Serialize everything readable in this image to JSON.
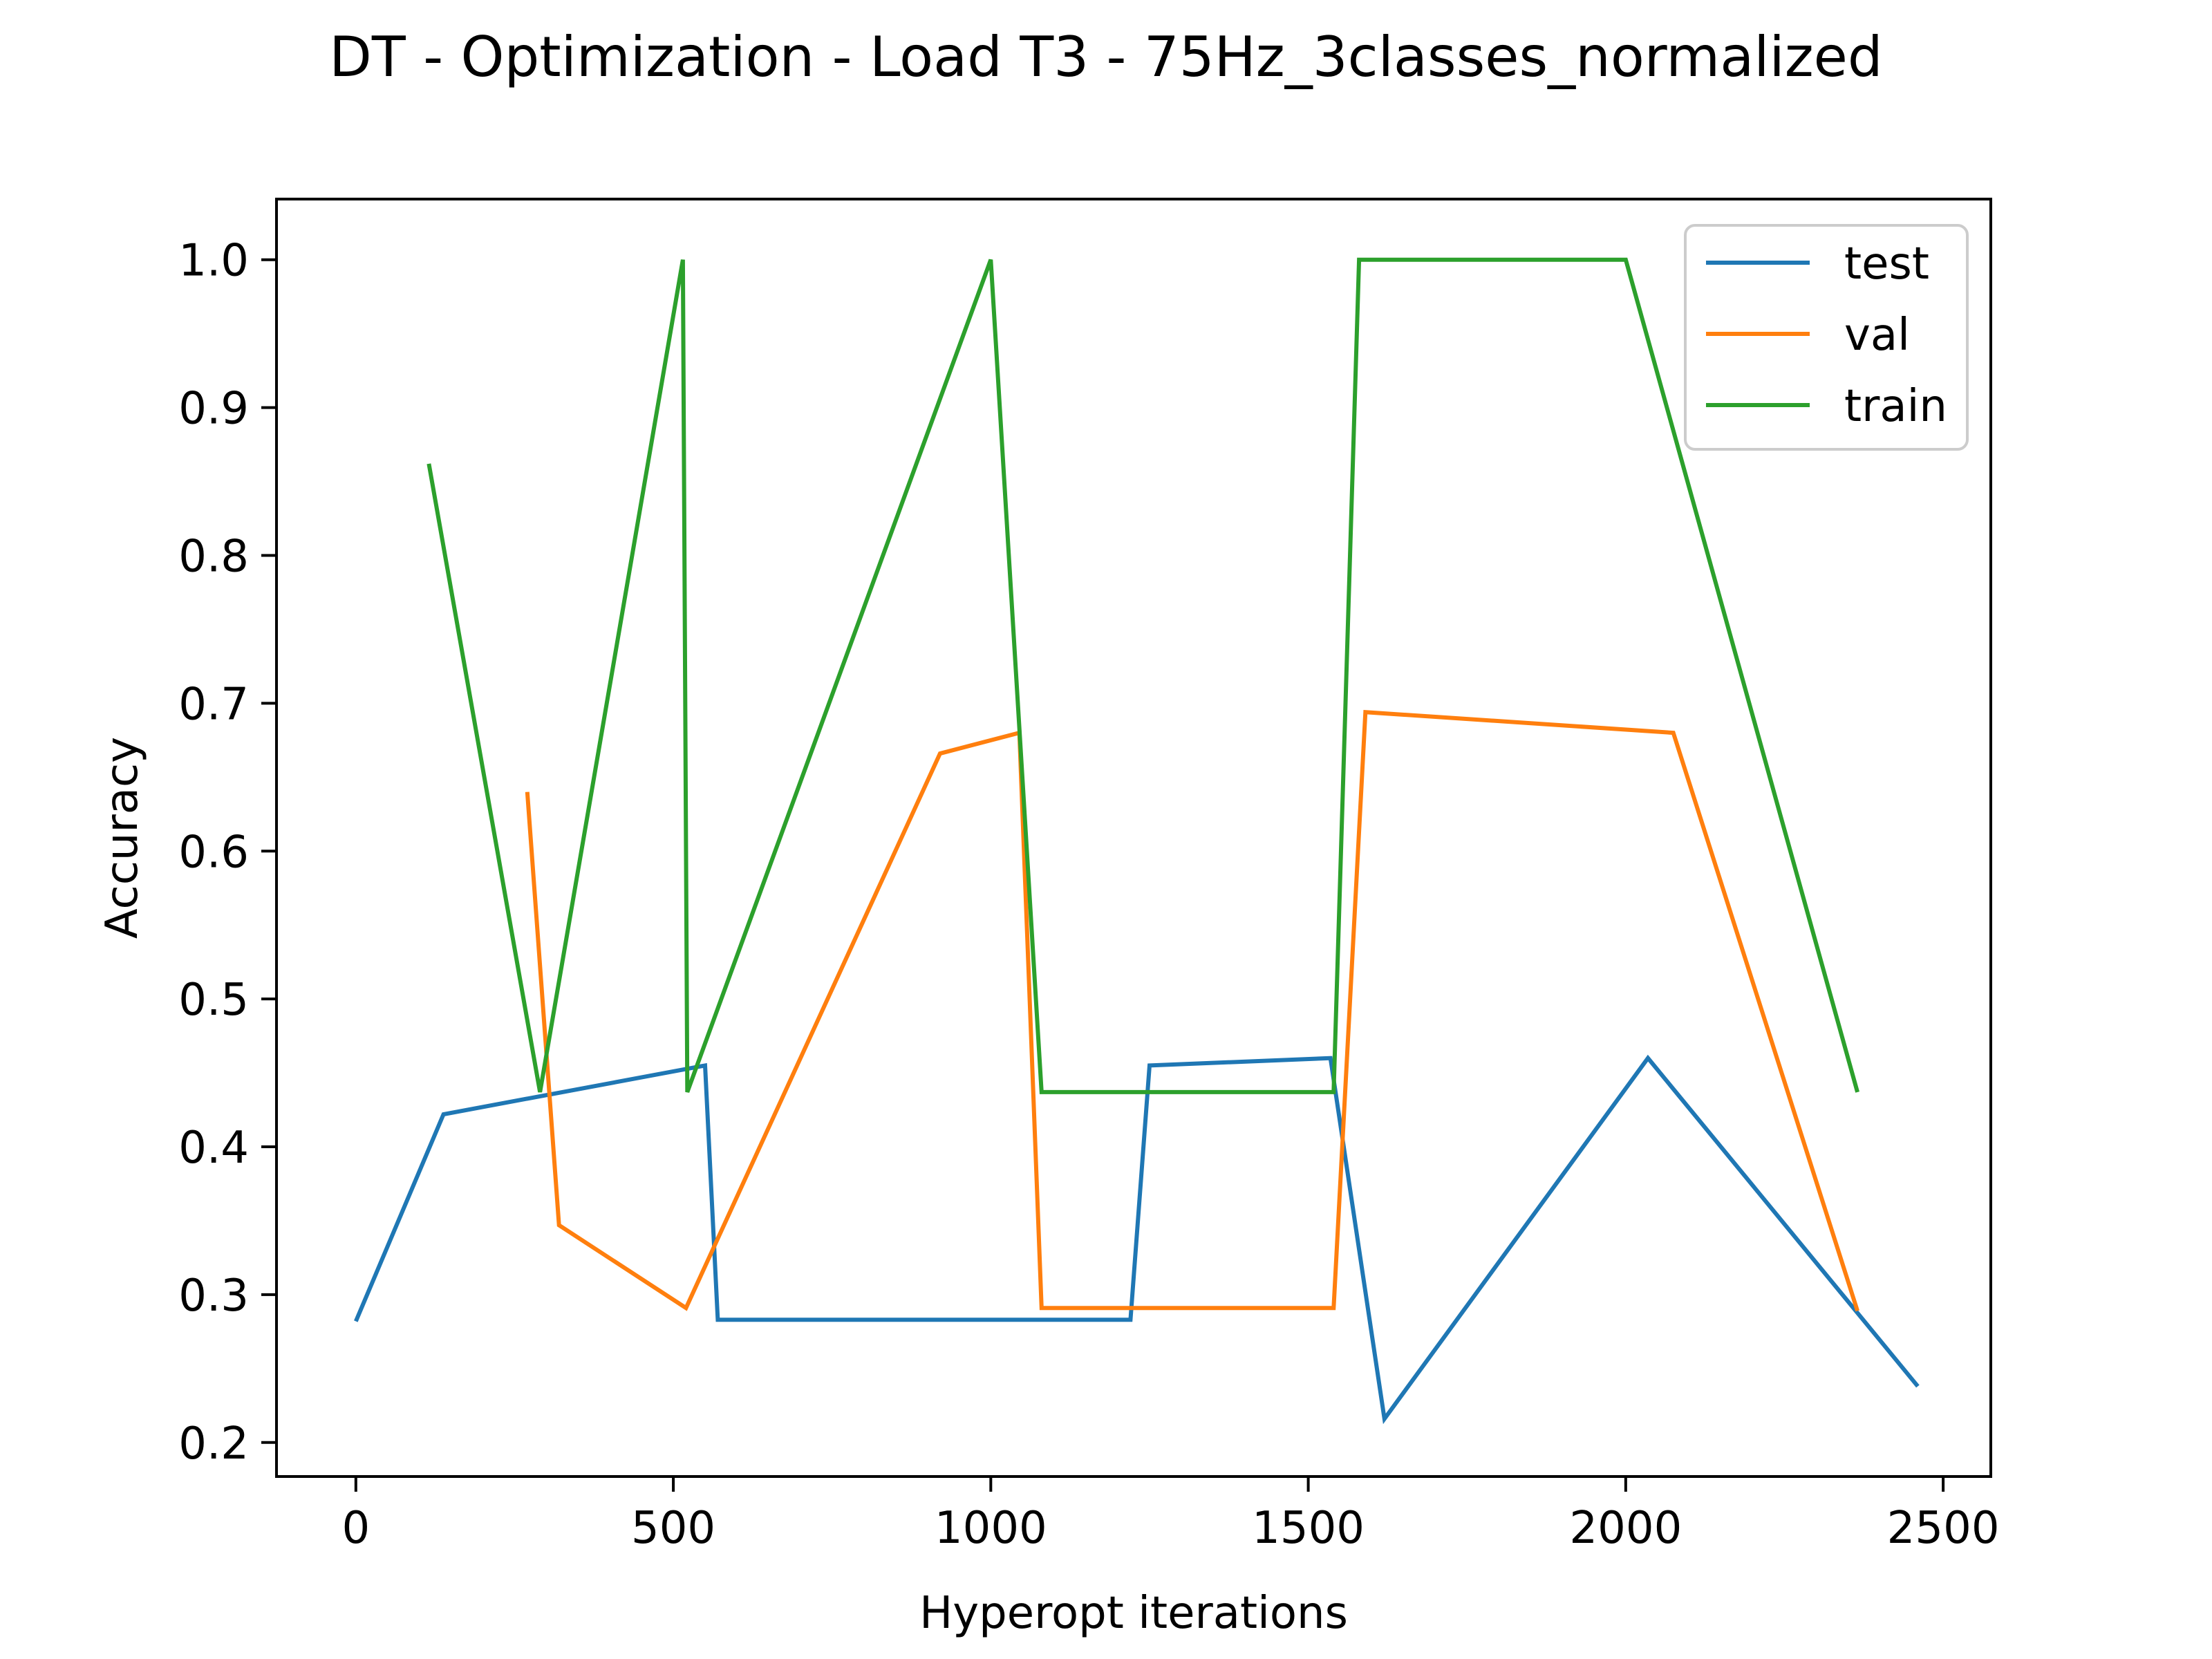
{
  "chart_data": {
    "type": "line",
    "title": "DT - Optimization - Load T3 - 75Hz_3classes_normalized",
    "xlabel": "Hyperopt iterations",
    "ylabel": "Accuracy",
    "xlim": [
      -125,
      2575
    ],
    "ylim": [
      0.177,
      1.041
    ],
    "xticks": [
      0,
      500,
      1000,
      1500,
      2000,
      2500
    ],
    "xtick_labels": [
      "0",
      "500",
      "1000",
      "1500",
      "2000",
      "2500"
    ],
    "yticks": [
      0.2,
      0.3,
      0.4,
      0.5,
      0.6,
      0.7,
      0.8,
      0.9,
      1.0
    ],
    "ytick_labels": [
      "0.2",
      "0.3",
      "0.4",
      "0.5",
      "0.6",
      "0.7",
      "0.8",
      "0.9",
      "1.0"
    ],
    "grid": false,
    "legend_position": "top-right",
    "series": [
      {
        "name": "test",
        "color": "#1f77b4",
        "x": [
          0,
          138,
          550,
          570,
          1220,
          1250,
          1535,
          1620,
          2035,
          2460
        ],
        "y": [
          0.282,
          0.422,
          0.455,
          0.283,
          0.283,
          0.455,
          0.46,
          0.216,
          0.46,
          0.238
        ]
      },
      {
        "name": "val",
        "color": "#ff7f0e",
        "x": [
          270,
          320,
          520,
          920,
          1045,
          1080,
          1540,
          1590,
          2075,
          2365
        ],
        "y": [
          0.64,
          0.347,
          0.291,
          0.666,
          0.68,
          0.291,
          0.291,
          0.694,
          0.68,
          0.289
        ]
      },
      {
        "name": "train",
        "color": "#2ca02c",
        "x": [
          115,
          290,
          515,
          522,
          1000,
          1080,
          1540,
          1580,
          2000,
          2365
        ],
        "y": [
          0.862,
          0.437,
          1.0,
          0.437,
          1.0,
          0.437,
          0.437,
          1.0,
          1.0,
          0.437
        ]
      }
    ]
  }
}
